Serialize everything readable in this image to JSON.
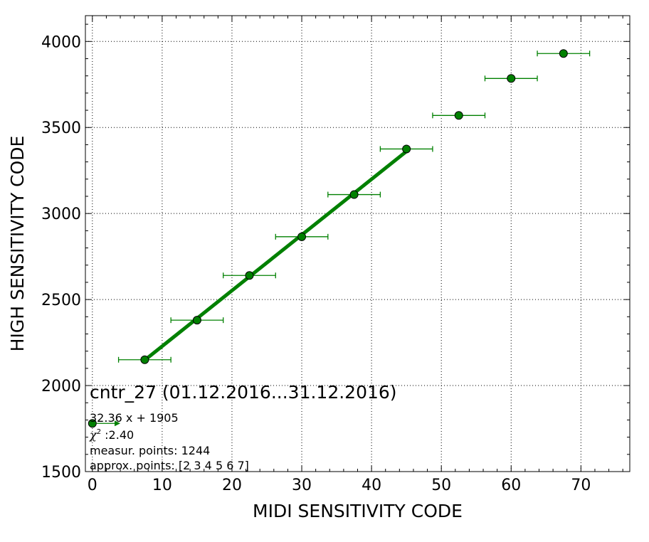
{
  "chart_data": {
    "type": "scatter",
    "xlabel": "MIDI SENSITIVITY CODE",
    "ylabel": "HIGH SENSITIVITY CODE",
    "xlim": [
      -1,
      77
    ],
    "ylim": [
      1500,
      4150
    ],
    "xticks": [
      0,
      10,
      20,
      30,
      40,
      50,
      60,
      70
    ],
    "yticks": [
      1500,
      2000,
      2500,
      3000,
      3500,
      4000
    ],
    "grid": true,
    "color": "#008000",
    "marker_color": "#008000",
    "series": [
      {
        "points": [
          {
            "x": 7.5,
            "y": 2150,
            "xerr": 3.75
          },
          {
            "x": 15,
            "y": 2380,
            "xerr": 3.75
          },
          {
            "x": 22.5,
            "y": 2640,
            "xerr": 3.75
          },
          {
            "x": 30,
            "y": 2865,
            "xerr": 3.75
          },
          {
            "x": 37.5,
            "y": 3110,
            "xerr": 3.75
          },
          {
            "x": 45,
            "y": 3375,
            "xerr": 3.75
          },
          {
            "x": 52.5,
            "y": 3570,
            "xerr": 3.75
          },
          {
            "x": 60,
            "y": 3785,
            "xerr": 3.75
          },
          {
            "x": 67.5,
            "y": 3930,
            "xerr": 3.75
          }
        ]
      }
    ],
    "fit_line": {
      "x": [
        7.5,
        45
      ],
      "slope": 32.36,
      "intercept": 1905
    },
    "legend_marker": {
      "x": 0,
      "y": 1780,
      "arrow_to_x": 4
    },
    "annotations": {
      "title": "cntr_27 (01.12.2016...31.12.2016)",
      "equation": "32.36 x + 1905",
      "chi_symbol": "χ",
      "chi_sup": "2",
      "chi_value": " :2.40",
      "measur": "measur. points: 1244",
      "approx": "approx. points: [2 3 4 5 6 7]"
    }
  }
}
